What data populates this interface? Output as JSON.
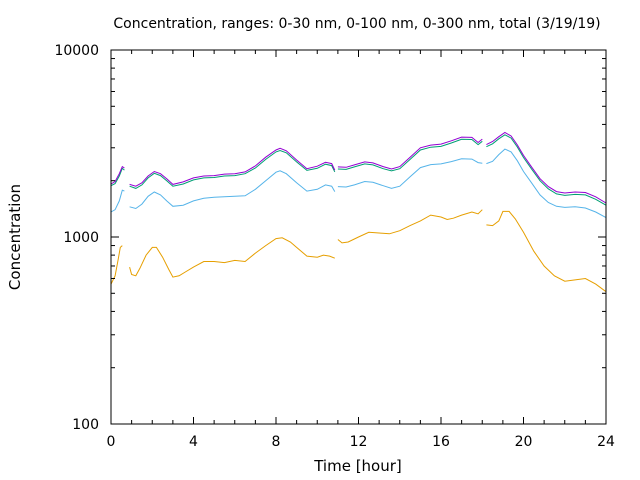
{
  "chart_data": {
    "type": "line",
    "title": "Concentration, ranges: 0-30 nm, 0-100 nm, 0-300 nm, total (3/19/19)",
    "xlabel": "Time [hour]",
    "ylabel": "Concentration",
    "xlim": [
      0,
      24
    ],
    "ylim": [
      100,
      10000
    ],
    "yscale": "log",
    "grid": false,
    "legend": "none",
    "xticks": [
      0,
      4,
      8,
      12,
      16,
      20,
      24
    ],
    "xtick_labels": [
      "0",
      "4",
      "8",
      "12",
      "16",
      "20",
      "24"
    ],
    "yticks": [
      100,
      1000,
      10000
    ],
    "ytick_labels": [
      "100",
      "1000",
      "10000"
    ],
    "series": [
      {
        "color": "#e69f00",
        "segments": [
          [
            [
              0,
              560
            ],
            [
              0.2,
              620
            ],
            [
              0.35,
              760
            ],
            [
              0.45,
              880
            ],
            [
              0.55,
              900
            ]
          ],
          [
            [
              0.9,
              690
            ],
            [
              1.0,
              630
            ],
            [
              1.2,
              620
            ],
            [
              1.4,
              680
            ],
            [
              1.7,
              800
            ],
            [
              2.0,
              880
            ],
            [
              2.2,
              880
            ],
            [
              2.5,
              780
            ],
            [
              2.8,
              670
            ],
            [
              3.0,
              610
            ],
            [
              3.3,
              620
            ],
            [
              3.6,
              650
            ],
            [
              4.0,
              690
            ],
            [
              4.5,
              740
            ],
            [
              5.0,
              740
            ],
            [
              5.5,
              730
            ],
            [
              6.0,
              750
            ],
            [
              6.5,
              740
            ],
            [
              7.0,
              820
            ],
            [
              7.5,
              900
            ],
            [
              8.0,
              980
            ],
            [
              8.3,
              990
            ],
            [
              8.7,
              940
            ],
            [
              9.0,
              880
            ],
            [
              9.5,
              790
            ],
            [
              10.0,
              780
            ],
            [
              10.3,
              800
            ],
            [
              10.6,
              790
            ],
            [
              10.85,
              770
            ]
          ],
          [
            [
              11.0,
              970
            ],
            [
              11.2,
              930
            ],
            [
              11.5,
              940
            ],
            [
              12.0,
              1000
            ],
            [
              12.5,
              1060
            ],
            [
              13.0,
              1050
            ],
            [
              13.5,
              1040
            ],
            [
              14.0,
              1080
            ],
            [
              14.5,
              1150
            ],
            [
              15.0,
              1220
            ],
            [
              15.5,
              1310
            ],
            [
              16.0,
              1280
            ],
            [
              16.3,
              1240
            ],
            [
              16.6,
              1260
            ],
            [
              17.0,
              1310
            ],
            [
              17.5,
              1360
            ],
            [
              17.8,
              1330
            ],
            [
              18.0,
              1400
            ]
          ],
          [
            [
              18.2,
              1160
            ],
            [
              18.5,
              1150
            ],
            [
              18.8,
              1220
            ],
            [
              19.0,
              1370
            ],
            [
              19.3,
              1370
            ],
            [
              19.6,
              1250
            ],
            [
              20.0,
              1060
            ],
            [
              20.5,
              840
            ],
            [
              21.0,
              700
            ],
            [
              21.5,
              620
            ],
            [
              22.0,
              580
            ],
            [
              22.5,
              590
            ],
            [
              23.0,
              600
            ],
            [
              23.5,
              560
            ],
            [
              24.0,
              510
            ]
          ]
        ]
      },
      {
        "color": "#56b4e9",
        "segments": [
          [
            [
              0,
              1360
            ],
            [
              0.2,
              1400
            ],
            [
              0.4,
              1560
            ],
            [
              0.55,
              1780
            ],
            [
              0.65,
              1760
            ]
          ],
          [
            [
              0.9,
              1450
            ],
            [
              1.2,
              1420
            ],
            [
              1.5,
              1500
            ],
            [
              1.8,
              1650
            ],
            [
              2.1,
              1740
            ],
            [
              2.4,
              1680
            ],
            [
              2.7,
              1560
            ],
            [
              3.0,
              1460
            ],
            [
              3.5,
              1480
            ],
            [
              4.0,
              1560
            ],
            [
              4.5,
              1610
            ],
            [
              5.0,
              1630
            ],
            [
              5.5,
              1640
            ],
            [
              6.0,
              1650
            ],
            [
              6.5,
              1660
            ],
            [
              7.0,
              1800
            ],
            [
              7.5,
              2000
            ],
            [
              8.0,
              2220
            ],
            [
              8.2,
              2260
            ],
            [
              8.5,
              2180
            ],
            [
              9.0,
              1950
            ],
            [
              9.5,
              1760
            ],
            [
              10.0,
              1800
            ],
            [
              10.4,
              1900
            ],
            [
              10.7,
              1870
            ],
            [
              10.85,
              1750
            ]
          ],
          [
            [
              11.0,
              1860
            ],
            [
              11.4,
              1850
            ],
            [
              11.8,
              1900
            ],
            [
              12.3,
              1980
            ],
            [
              12.7,
              1960
            ],
            [
              13.2,
              1880
            ],
            [
              13.6,
              1820
            ],
            [
              14.0,
              1870
            ],
            [
              14.5,
              2100
            ],
            [
              15.0,
              2350
            ],
            [
              15.5,
              2440
            ],
            [
              16.0,
              2460
            ],
            [
              16.5,
              2530
            ],
            [
              17.0,
              2620
            ],
            [
              17.5,
              2610
            ],
            [
              17.8,
              2500
            ],
            [
              18.0,
              2480
            ]
          ],
          [
            [
              18.2,
              2470
            ],
            [
              18.5,
              2540
            ],
            [
              18.8,
              2760
            ],
            [
              19.1,
              2950
            ],
            [
              19.4,
              2850
            ],
            [
              19.7,
              2560
            ],
            [
              20.0,
              2240
            ],
            [
              20.4,
              1940
            ],
            [
              20.8,
              1680
            ],
            [
              21.2,
              1530
            ],
            [
              21.6,
              1460
            ],
            [
              22.0,
              1440
            ],
            [
              22.5,
              1450
            ],
            [
              23.0,
              1430
            ],
            [
              23.5,
              1360
            ],
            [
              24.0,
              1270
            ]
          ]
        ]
      },
      {
        "color": "#009e73",
        "segments": [
          [
            [
              0,
              1880
            ],
            [
              0.2,
              1930
            ],
            [
              0.4,
              2120
            ],
            [
              0.55,
              2330
            ],
            [
              0.65,
              2280
            ]
          ],
          [
            [
              0.9,
              1870
            ],
            [
              1.2,
              1820
            ],
            [
              1.5,
              1900
            ],
            [
              1.8,
              2070
            ],
            [
              2.1,
              2190
            ],
            [
              2.4,
              2130
            ],
            [
              2.7,
              2000
            ],
            [
              3.0,
              1870
            ],
            [
              3.5,
              1920
            ],
            [
              4.0,
              2020
            ],
            [
              4.5,
              2070
            ],
            [
              5.0,
              2080
            ],
            [
              5.5,
              2120
            ],
            [
              6.0,
              2130
            ],
            [
              6.5,
              2180
            ],
            [
              7.0,
              2340
            ],
            [
              7.5,
              2600
            ],
            [
              8.0,
              2850
            ],
            [
              8.2,
              2900
            ],
            [
              8.5,
              2820
            ],
            [
              9.0,
              2520
            ],
            [
              9.5,
              2270
            ],
            [
              10.0,
              2330
            ],
            [
              10.4,
              2450
            ],
            [
              10.7,
              2410
            ],
            [
              10.85,
              2230
            ]
          ],
          [
            [
              11.0,
              2310
            ],
            [
              11.4,
              2300
            ],
            [
              11.8,
              2370
            ],
            [
              12.3,
              2460
            ],
            [
              12.7,
              2430
            ],
            [
              13.2,
              2320
            ],
            [
              13.6,
              2260
            ],
            [
              14.0,
              2320
            ],
            [
              14.5,
              2600
            ],
            [
              15.0,
              2920
            ],
            [
              15.5,
              3020
            ],
            [
              16.0,
              3050
            ],
            [
              16.5,
              3180
            ],
            [
              17.0,
              3330
            ],
            [
              17.5,
              3320
            ],
            [
              17.8,
              3120
            ],
            [
              18.0,
              3250
            ]
          ],
          [
            [
              18.2,
              3040
            ],
            [
              18.5,
              3150
            ],
            [
              18.8,
              3350
            ],
            [
              19.1,
              3520
            ],
            [
              19.4,
              3380
            ],
            [
              19.7,
              3030
            ],
            [
              20.0,
              2660
            ],
            [
              20.4,
              2300
            ],
            [
              20.8,
              2000
            ],
            [
              21.2,
              1810
            ],
            [
              21.6,
              1700
            ],
            [
              22.0,
              1670
            ],
            [
              22.5,
              1690
            ],
            [
              23.0,
              1680
            ],
            [
              23.5,
              1590
            ],
            [
              24.0,
              1480
            ]
          ]
        ]
      },
      {
        "color": "#9400d3",
        "segments": [
          [
            [
              0,
              1920
            ],
            [
              0.2,
              1980
            ],
            [
              0.4,
              2180
            ],
            [
              0.55,
              2380
            ],
            [
              0.65,
              2340
            ]
          ],
          [
            [
              0.9,
              1910
            ],
            [
              1.2,
              1870
            ],
            [
              1.5,
              1950
            ],
            [
              1.8,
              2120
            ],
            [
              2.1,
              2240
            ],
            [
              2.4,
              2180
            ],
            [
              2.7,
              2050
            ],
            [
              3.0,
              1910
            ],
            [
              3.5,
              1970
            ],
            [
              4.0,
              2070
            ],
            [
              4.5,
              2120
            ],
            [
              5.0,
              2130
            ],
            [
              5.5,
              2170
            ],
            [
              6.0,
              2180
            ],
            [
              6.5,
              2230
            ],
            [
              7.0,
              2400
            ],
            [
              7.5,
              2670
            ],
            [
              8.0,
              2920
            ],
            [
              8.2,
              2980
            ],
            [
              8.5,
              2890
            ],
            [
              9.0,
              2580
            ],
            [
              9.5,
              2320
            ],
            [
              10.0,
              2390
            ],
            [
              10.4,
              2510
            ],
            [
              10.7,
              2470
            ],
            [
              10.85,
              2280
            ]
          ],
          [
            [
              11.0,
              2370
            ],
            [
              11.4,
              2360
            ],
            [
              11.8,
              2430
            ],
            [
              12.3,
              2520
            ],
            [
              12.7,
              2490
            ],
            [
              13.2,
              2380
            ],
            [
              13.6,
              2310
            ],
            [
              14.0,
              2380
            ],
            [
              14.5,
              2670
            ],
            [
              15.0,
              3000
            ],
            [
              15.5,
              3100
            ],
            [
              16.0,
              3140
            ],
            [
              16.5,
              3270
            ],
            [
              17.0,
              3420
            ],
            [
              17.5,
              3410
            ],
            [
              17.8,
              3200
            ],
            [
              18.0,
              3340
            ]
          ],
          [
            [
              18.2,
              3120
            ],
            [
              18.5,
              3240
            ],
            [
              18.8,
              3440
            ],
            [
              19.1,
              3620
            ],
            [
              19.4,
              3470
            ],
            [
              19.7,
              3110
            ],
            [
              20.0,
              2730
            ],
            [
              20.4,
              2360
            ],
            [
              20.8,
              2050
            ],
            [
              21.2,
              1860
            ],
            [
              21.6,
              1750
            ],
            [
              22.0,
              1720
            ],
            [
              22.5,
              1740
            ],
            [
              23.0,
              1730
            ],
            [
              23.5,
              1640
            ],
            [
              24.0,
              1520
            ]
          ]
        ]
      }
    ]
  }
}
